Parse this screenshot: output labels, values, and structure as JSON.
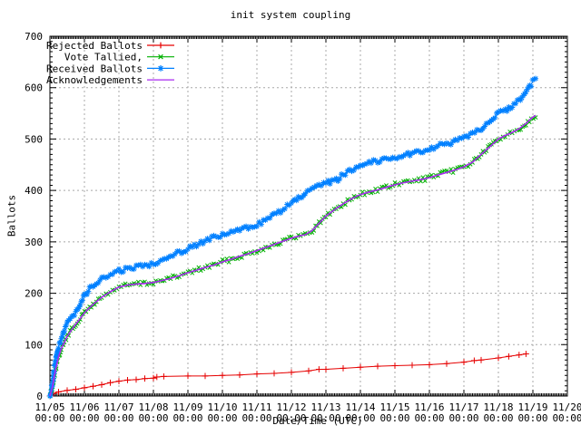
{
  "title": "init system coupling",
  "chart_data": {
    "type": "line",
    "title": "init system coupling",
    "xlabel": "Date/Time (UTC)",
    "ylabel": "Ballots",
    "ylim": [
      0,
      700
    ],
    "y_tick_step": 100,
    "x_days": [
      "11/05",
      "11/06",
      "11/07",
      "11/08",
      "11/09",
      "11/10",
      "11/11",
      "11/12",
      "11/13",
      "11/14",
      "11/15",
      "11/16",
      "11/17",
      "11/18",
      "11/19",
      "11/20"
    ],
    "x_tick_sub": "00:00",
    "grid": true,
    "legend_position": "top-left-inside",
    "series": [
      {
        "name": "Rejected Ballots",
        "color": "#e60000",
        "marker": "plus",
        "band": false,
        "x_unit": "days since 11/05 00:00",
        "points": [
          [
            0,
            0
          ],
          [
            0.1,
            5
          ],
          [
            0.25,
            8
          ],
          [
            0.5,
            11
          ],
          [
            0.75,
            13
          ],
          [
            1,
            16
          ],
          [
            1.25,
            19
          ],
          [
            1.5,
            22
          ],
          [
            1.75,
            26
          ],
          [
            2,
            29
          ],
          [
            2.25,
            31
          ],
          [
            2.5,
            32
          ],
          [
            2.75,
            34
          ],
          [
            3,
            35
          ],
          [
            3.1,
            37
          ],
          [
            3.3,
            38
          ],
          [
            4,
            39
          ],
          [
            4.5,
            39
          ],
          [
            5,
            40
          ],
          [
            5.5,
            41
          ],
          [
            6,
            43
          ],
          [
            6.5,
            44
          ],
          [
            7,
            46
          ],
          [
            7.5,
            49
          ],
          [
            7.8,
            52
          ],
          [
            8,
            52
          ],
          [
            8.5,
            54
          ],
          [
            9,
            56
          ],
          [
            9.5,
            58
          ],
          [
            10,
            59
          ],
          [
            10.5,
            60
          ],
          [
            11,
            61
          ],
          [
            11.5,
            63
          ],
          [
            12,
            66
          ],
          [
            12.3,
            69
          ],
          [
            12.5,
            70
          ],
          [
            13,
            74
          ],
          [
            13.3,
            77
          ],
          [
            13.6,
            80
          ],
          [
            13.8,
            82
          ]
        ]
      },
      {
        "name": "Vote Tallied,",
        "color": "#00b000",
        "marker": "x",
        "band": true,
        "x_unit": "days since 11/05 00:00",
        "points": [
          [
            0,
            0
          ],
          [
            0.08,
            20
          ],
          [
            0.13,
            40
          ],
          [
            0.2,
            62
          ],
          [
            0.25,
            76
          ],
          [
            0.33,
            92
          ],
          [
            0.42,
            105
          ],
          [
            0.5,
            116
          ],
          [
            0.63,
            129
          ],
          [
            0.75,
            140
          ],
          [
            0.88,
            151
          ],
          [
            1,
            162
          ],
          [
            1.15,
            172
          ],
          [
            1.3,
            181
          ],
          [
            1.5,
            192
          ],
          [
            1.75,
            203
          ],
          [
            2,
            212
          ],
          [
            2.25,
            216
          ],
          [
            2.5,
            218
          ],
          [
            2.75,
            219
          ],
          [
            3,
            221
          ],
          [
            3.2,
            224
          ],
          [
            3.5,
            229
          ],
          [
            3.75,
            234
          ],
          [
            4,
            240
          ],
          [
            4.25,
            245
          ],
          [
            4.5,
            250
          ],
          [
            4.75,
            255
          ],
          [
            5,
            261
          ],
          [
            5.25,
            266
          ],
          [
            5.5,
            272
          ],
          [
            5.75,
            277
          ],
          [
            6,
            283
          ],
          [
            6.25,
            289
          ],
          [
            6.5,
            295
          ],
          [
            6.75,
            301
          ],
          [
            7,
            307
          ],
          [
            7.2,
            311
          ],
          [
            7.4,
            314
          ],
          [
            7.6,
            322
          ],
          [
            7.8,
            336
          ],
          [
            8,
            350
          ],
          [
            8.3,
            365
          ],
          [
            8.5,
            374
          ],
          [
            8.75,
            384
          ],
          [
            9,
            392
          ],
          [
            9.25,
            397
          ],
          [
            9.5,
            401
          ],
          [
            9.75,
            406
          ],
          [
            10,
            411
          ],
          [
            10.25,
            415
          ],
          [
            10.5,
            418
          ],
          [
            10.75,
            421
          ],
          [
            11,
            425
          ],
          [
            11.25,
            430
          ],
          [
            11.5,
            435
          ],
          [
            11.75,
            440
          ],
          [
            12,
            446
          ],
          [
            12.25,
            455
          ],
          [
            12.5,
            470
          ],
          [
            12.75,
            485
          ],
          [
            13,
            500
          ],
          [
            13.2,
            507
          ],
          [
            13.4,
            513
          ],
          [
            13.6,
            520
          ],
          [
            13.8,
            530
          ],
          [
            13.95,
            540
          ],
          [
            14.08,
            546
          ]
        ]
      },
      {
        "name": "Received Ballots",
        "color": "#0080ff",
        "marker": "star",
        "band": true,
        "x_unit": "days since 11/05 00:00",
        "points": [
          [
            0,
            0
          ],
          [
            0.08,
            25
          ],
          [
            0.13,
            55
          ],
          [
            0.2,
            80
          ],
          [
            0.25,
            97
          ],
          [
            0.33,
            112
          ],
          [
            0.42,
            127
          ],
          [
            0.5,
            140
          ],
          [
            0.63,
            153
          ],
          [
            0.75,
            165
          ],
          [
            0.88,
            181
          ],
          [
            1,
            195
          ],
          [
            1.15,
            208
          ],
          [
            1.3,
            218
          ],
          [
            1.5,
            227
          ],
          [
            1.75,
            236
          ],
          [
            2,
            243
          ],
          [
            2.25,
            248
          ],
          [
            2.5,
            251
          ],
          [
            2.75,
            254
          ],
          [
            3,
            258
          ],
          [
            3.2,
            265
          ],
          [
            3.5,
            273
          ],
          [
            3.75,
            280
          ],
          [
            4,
            287
          ],
          [
            4.25,
            295
          ],
          [
            4.5,
            302
          ],
          [
            4.75,
            308
          ],
          [
            5,
            313
          ],
          [
            5.25,
            318
          ],
          [
            5.5,
            323
          ],
          [
            5.75,
            328
          ],
          [
            6,
            334
          ],
          [
            6.25,
            342
          ],
          [
            6.5,
            352
          ],
          [
            6.75,
            363
          ],
          [
            7,
            375
          ],
          [
            7.2,
            384
          ],
          [
            7.4,
            394
          ],
          [
            7.6,
            401
          ],
          [
            8,
            414
          ],
          [
            8.3,
            420
          ],
          [
            8.5,
            430
          ],
          [
            8.75,
            441
          ],
          [
            9,
            450
          ],
          [
            9.25,
            455
          ],
          [
            9.5,
            458
          ],
          [
            9.75,
            461
          ],
          [
            10,
            464
          ],
          [
            10.25,
            469
          ],
          [
            10.5,
            472
          ],
          [
            10.75,
            476
          ],
          [
            11,
            481
          ],
          [
            11.25,
            486
          ],
          [
            11.5,
            491
          ],
          [
            11.75,
            495
          ],
          [
            12,
            501
          ],
          [
            12.25,
            510
          ],
          [
            12.5,
            521
          ],
          [
            12.75,
            535
          ],
          [
            13,
            549
          ],
          [
            13.2,
            556
          ],
          [
            13.4,
            565
          ],
          [
            13.6,
            576
          ],
          [
            13.8,
            592
          ],
          [
            13.95,
            607
          ],
          [
            14.08,
            620
          ]
        ]
      },
      {
        "name": "Acknowledgements",
        "color": "#a929f0",
        "marker": "none",
        "band": false,
        "x_unit": "days since 11/05 00:00",
        "points": [
          [
            0,
            0
          ],
          [
            0.08,
            20
          ],
          [
            0.13,
            40
          ],
          [
            0.2,
            62
          ],
          [
            0.25,
            76
          ],
          [
            0.33,
            92
          ],
          [
            0.42,
            105
          ],
          [
            0.5,
            116
          ],
          [
            0.63,
            129
          ],
          [
            0.75,
            140
          ],
          [
            0.88,
            151
          ],
          [
            1,
            162
          ],
          [
            1.15,
            172
          ],
          [
            1.3,
            181
          ],
          [
            1.5,
            192
          ],
          [
            1.75,
            203
          ],
          [
            2,
            212
          ],
          [
            2.25,
            216
          ],
          [
            2.5,
            218
          ],
          [
            2.75,
            219
          ],
          [
            3,
            221
          ],
          [
            3.2,
            224
          ],
          [
            3.5,
            229
          ],
          [
            3.75,
            234
          ],
          [
            4,
            240
          ],
          [
            4.25,
            245
          ],
          [
            4.5,
            250
          ],
          [
            4.75,
            255
          ],
          [
            5,
            261
          ],
          [
            5.25,
            266
          ],
          [
            5.5,
            272
          ],
          [
            5.75,
            277
          ],
          [
            6,
            283
          ],
          [
            6.25,
            289
          ],
          [
            6.5,
            295
          ],
          [
            6.75,
            301
          ],
          [
            7,
            307
          ],
          [
            7.2,
            311
          ],
          [
            7.4,
            314
          ],
          [
            7.6,
            322
          ],
          [
            7.8,
            336
          ],
          [
            8,
            350
          ],
          [
            8.3,
            365
          ],
          [
            8.5,
            374
          ],
          [
            8.75,
            384
          ],
          [
            9,
            392
          ],
          [
            9.25,
            397
          ],
          [
            9.5,
            401
          ],
          [
            9.75,
            406
          ],
          [
            10,
            411
          ],
          [
            10.25,
            415
          ],
          [
            10.5,
            418
          ],
          [
            10.75,
            421
          ],
          [
            11,
            425
          ],
          [
            11.25,
            430
          ],
          [
            11.5,
            435
          ],
          [
            11.75,
            440
          ],
          [
            12,
            446
          ],
          [
            12.25,
            455
          ],
          [
            12.5,
            470
          ],
          [
            12.75,
            485
          ],
          [
            13,
            500
          ],
          [
            13.2,
            507
          ],
          [
            13.4,
            513
          ],
          [
            13.6,
            520
          ],
          [
            13.8,
            530
          ],
          [
            13.95,
            540
          ],
          [
            14.08,
            546
          ]
        ]
      }
    ]
  }
}
